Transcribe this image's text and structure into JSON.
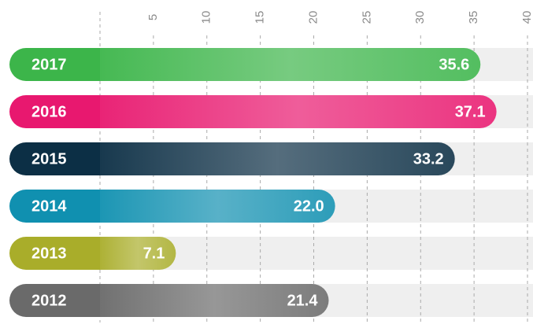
{
  "chart_data": {
    "type": "bar",
    "orientation": "horizontal",
    "categories": [
      "2017",
      "2016",
      "2015",
      "2014",
      "2013",
      "2012"
    ],
    "values": [
      35.6,
      37.1,
      33.2,
      22.0,
      7.1,
      21.4
    ],
    "value_labels": [
      "35.6",
      "37.1",
      "33.2",
      "22.0",
      "7.1",
      "21.4"
    ],
    "colors": [
      "#3cb54a",
      "#e8186f",
      "#0c2f45",
      "#1090b0",
      "#a9ad2a",
      "#6a6a6a"
    ],
    "xlim": [
      0,
      40
    ],
    "xticks": [
      5,
      10,
      15,
      20,
      25,
      30,
      35,
      40
    ],
    "grid": true
  }
}
